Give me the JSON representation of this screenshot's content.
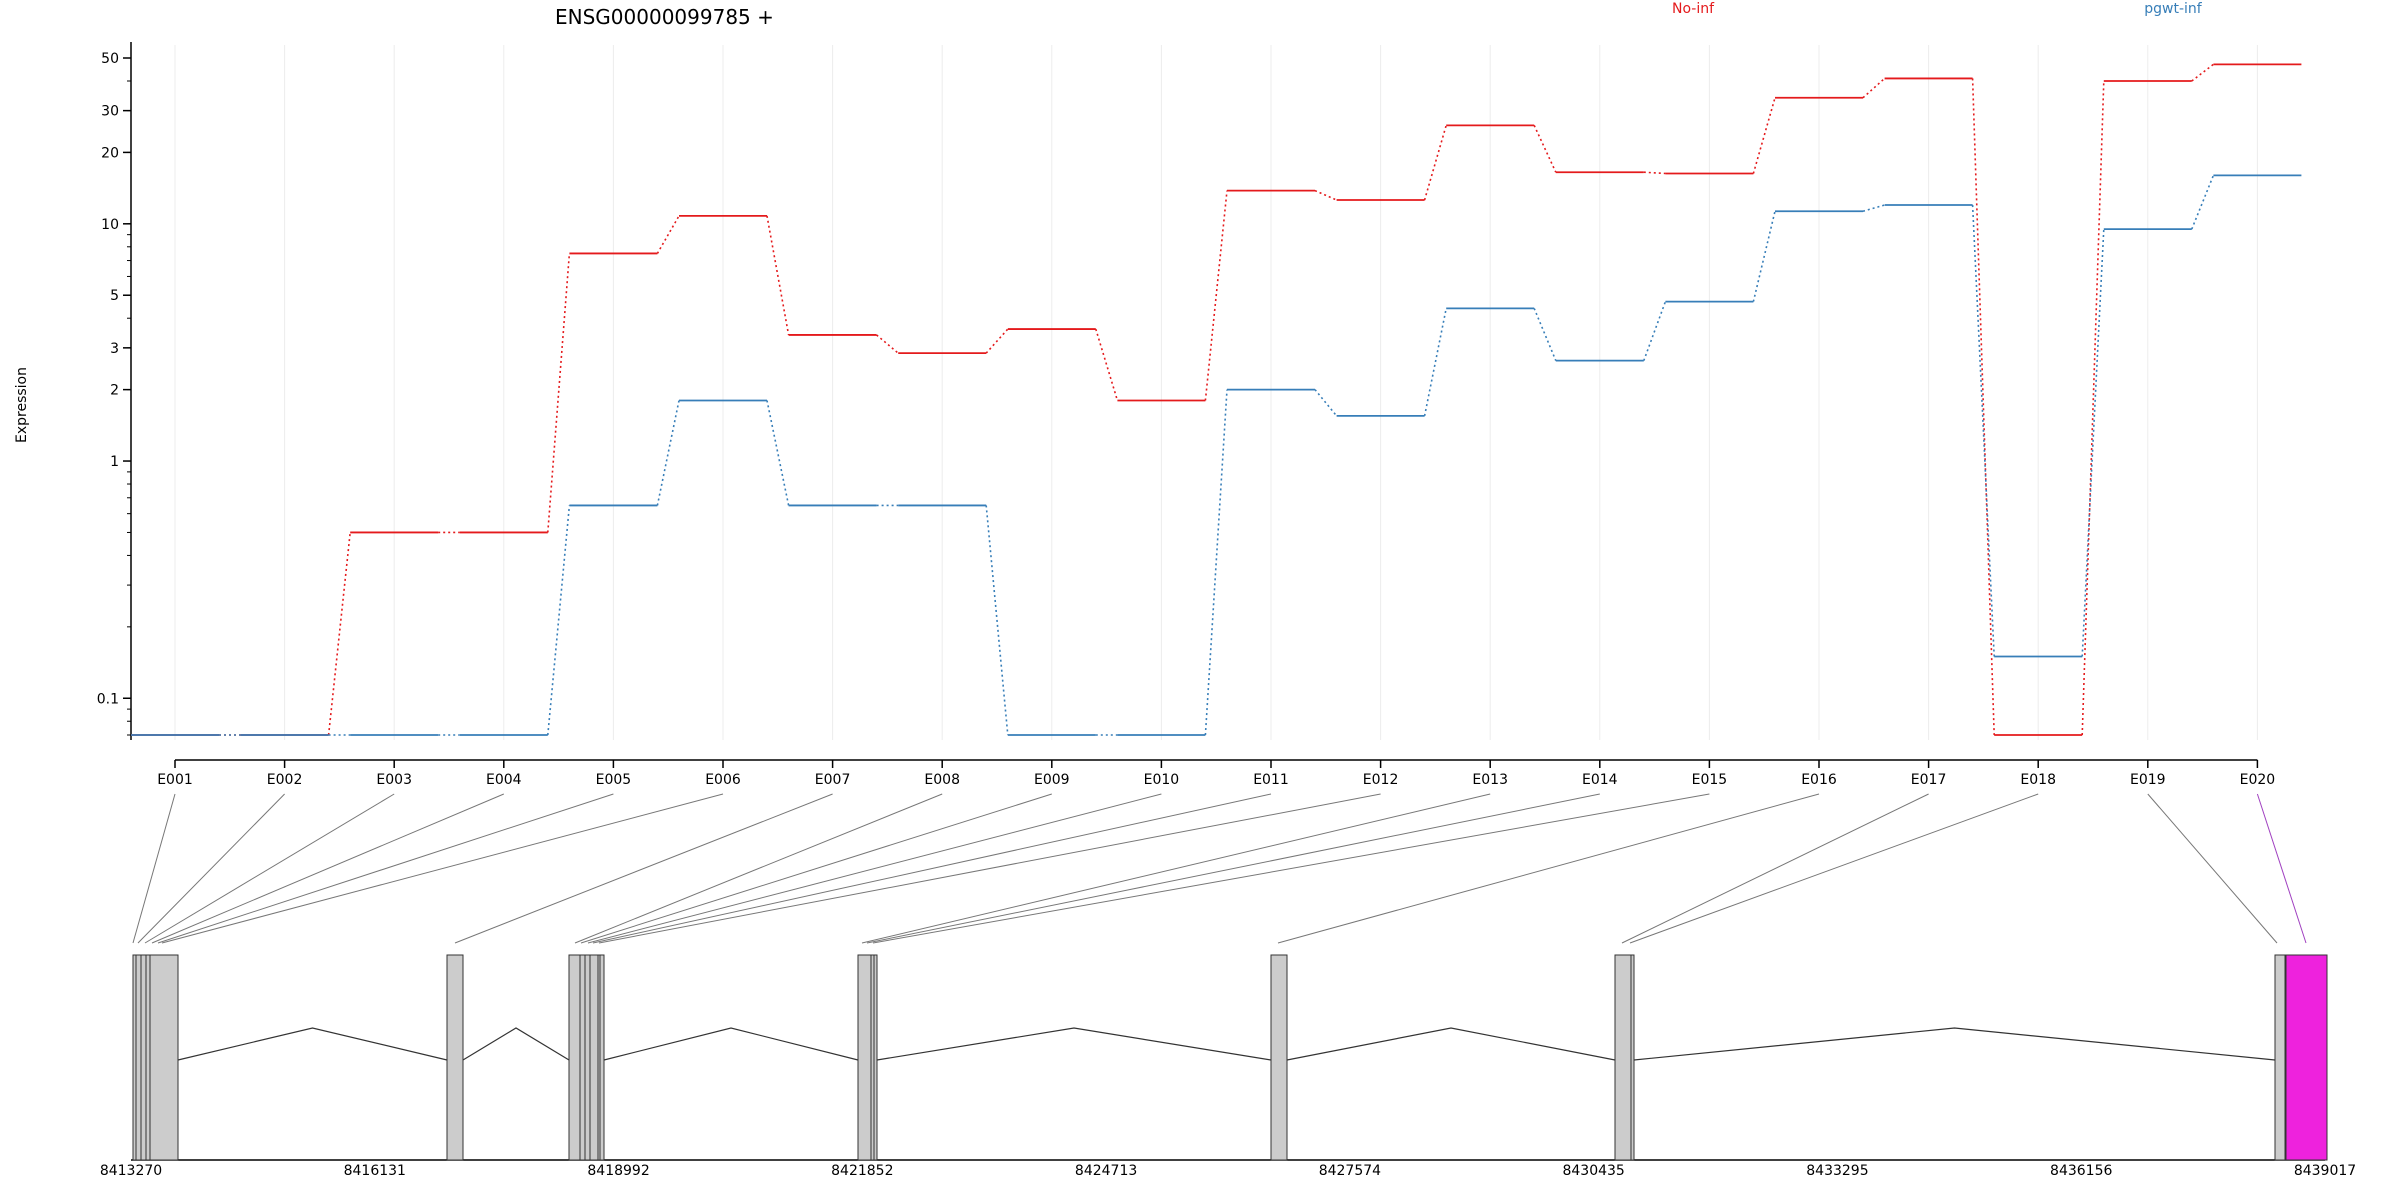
{
  "chart_data": {
    "type": "line",
    "title": "ENSG00000099785 +",
    "ylabel": "Expression",
    "xlabel": "",
    "y_scale": "log",
    "ylim": [
      0.07,
      53
    ],
    "y_ticks": [
      0.1,
      1,
      2,
      3,
      5,
      10,
      20,
      30,
      50
    ],
    "y_tick_labels": [
      "0.1",
      "1",
      "2",
      "3",
      "5",
      "10",
      "20",
      "30",
      "50"
    ],
    "categories": [
      "E001",
      "E002",
      "E003",
      "E004",
      "E005",
      "E006",
      "E007",
      "E008",
      "E009",
      "E010",
      "E011",
      "E012",
      "E013",
      "E014",
      "E015",
      "E016",
      "E017",
      "E018",
      "E019",
      "E020"
    ],
    "series": [
      {
        "name": "No-inf",
        "color": "#e41a1c",
        "values": [
          0.07,
          0.07,
          0.5,
          0.5,
          7.5,
          10.8,
          3.4,
          2.85,
          3.6,
          1.8,
          13.8,
          12.6,
          26,
          16.5,
          16.3,
          34,
          41,
          0.07,
          40,
          47
        ]
      },
      {
        "name": "pgwt-inf",
        "color": "#377eb8",
        "values": [
          0.07,
          0.07,
          0.07,
          0.07,
          0.65,
          1.8,
          0.65,
          0.65,
          0.07,
          0.07,
          2.0,
          1.55,
          4.4,
          2.65,
          4.7,
          11.3,
          12.0,
          0.15,
          9.5,
          16
        ]
      }
    ],
    "grid": true,
    "legend": "top-right",
    "gene_model": {
      "coordinate_labels": [
        "8413270",
        "8416131",
        "8418992",
        "8421852",
        "8424713",
        "8427574",
        "8430435",
        "8433295",
        "8436156",
        "8439017"
      ],
      "highlight_color": "#ee22dd",
      "box_color": "#cccccc"
    }
  }
}
